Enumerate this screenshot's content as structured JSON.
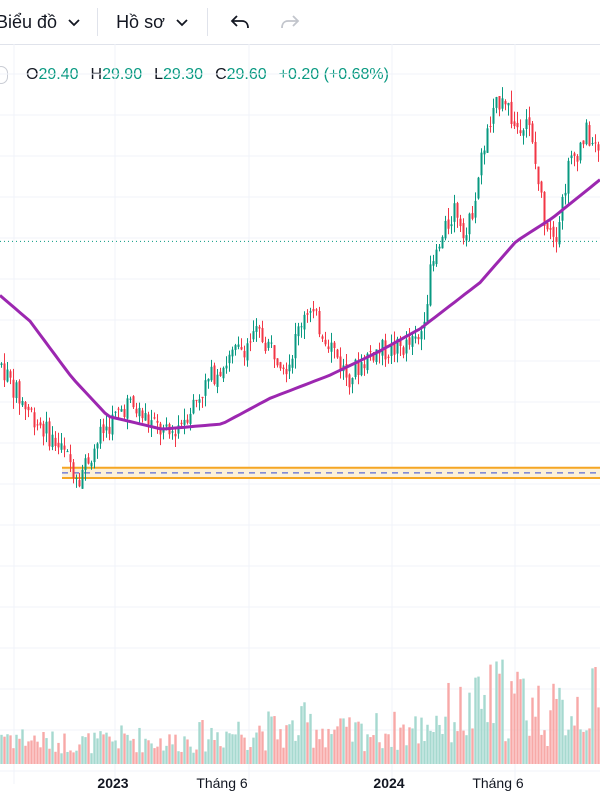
{
  "toolbar": {
    "chart_menu_label": "Biểu đồ",
    "profile_menu_label": "Hồ sơ"
  },
  "legend": {
    "o_key": "O",
    "o_val": "29.40",
    "h_key": "H",
    "h_val": "29.90",
    "l_key": "L",
    "l_val": "29.30",
    "c_key": "C",
    "c_val": "29.60",
    "change": "+0.20 (+0.68%)"
  },
  "colors": {
    "up": "#089981",
    "down": "#f23645",
    "vol_up": "#a6d9cf",
    "vol_down": "#f7a9a7",
    "ma": "#9c27b0",
    "support": "#f5a623",
    "grid": "#f0f3fa"
  },
  "chart_data": {
    "type": "candlestick",
    "x_ticks": [
      "2023",
      "Tháng 6",
      "2024",
      "Tháng 6"
    ],
    "price_reference": 29.6,
    "support_zone": [
      20.4,
      20.8
    ],
    "price_anchors": [
      {
        "t": 0.0,
        "p": 24.8
      },
      {
        "t": 0.03,
        "p": 23.5
      },
      {
        "t": 0.1,
        "p": 21.5
      },
      {
        "t": 0.13,
        "p": 20.5
      },
      {
        "t": 0.17,
        "p": 22.2
      },
      {
        "t": 0.21,
        "p": 23.3
      },
      {
        "t": 0.28,
        "p": 22.0
      },
      {
        "t": 0.31,
        "p": 22.9
      },
      {
        "t": 0.36,
        "p": 24.6
      },
      {
        "t": 0.43,
        "p": 26.0
      },
      {
        "t": 0.48,
        "p": 24.8
      },
      {
        "t": 0.51,
        "p": 27.1
      },
      {
        "t": 0.55,
        "p": 25.7
      },
      {
        "t": 0.58,
        "p": 24.3
      },
      {
        "t": 0.62,
        "p": 25.3
      },
      {
        "t": 0.66,
        "p": 25.4
      },
      {
        "t": 0.7,
        "p": 25.7
      },
      {
        "t": 0.72,
        "p": 28.5
      },
      {
        "t": 0.76,
        "p": 31.0
      },
      {
        "t": 0.78,
        "p": 29.8
      },
      {
        "t": 0.81,
        "p": 33.5
      },
      {
        "t": 0.84,
        "p": 35.5
      },
      {
        "t": 0.86,
        "p": 34.0
      },
      {
        "t": 0.88,
        "p": 34.5
      },
      {
        "t": 0.91,
        "p": 30.5
      },
      {
        "t": 0.93,
        "p": 30.0
      },
      {
        "t": 0.95,
        "p": 32.5
      },
      {
        "t": 0.98,
        "p": 33.8
      },
      {
        "t": 1.0,
        "p": 33.0
      }
    ],
    "ma_anchors": [
      {
        "t": 0.0,
        "p": 27.5
      },
      {
        "t": 0.05,
        "p": 26.5
      },
      {
        "t": 0.12,
        "p": 24.3
      },
      {
        "t": 0.18,
        "p": 22.8
      },
      {
        "t": 0.27,
        "p": 22.3
      },
      {
        "t": 0.37,
        "p": 22.5
      },
      {
        "t": 0.45,
        "p": 23.5
      },
      {
        "t": 0.55,
        "p": 24.4
      },
      {
        "t": 0.63,
        "p": 25.3
      },
      {
        "t": 0.7,
        "p": 26.2
      },
      {
        "t": 0.8,
        "p": 28.0
      },
      {
        "t": 0.86,
        "p": 29.6
      },
      {
        "t": 0.92,
        "p": 30.5
      },
      {
        "t": 1.0,
        "p": 32.0
      }
    ]
  }
}
